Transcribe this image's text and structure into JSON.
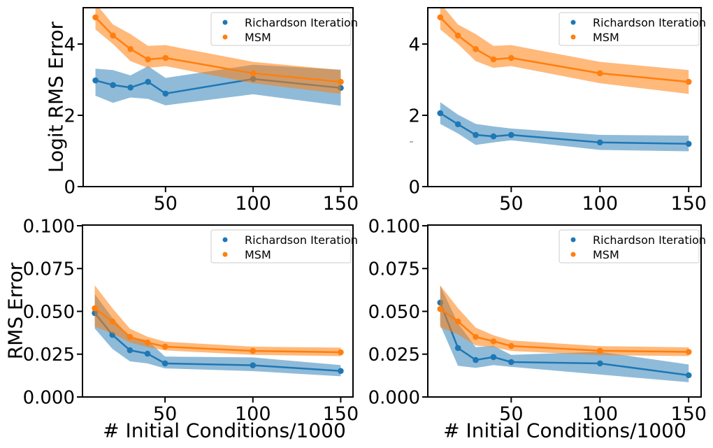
{
  "figure": {
    "background": "#ffffff"
  },
  "colors": {
    "richardson": "#1f77b4",
    "msm": "#ff7f0e",
    "band_opacity": {
      "richardson": 0.5,
      "msm": 0.55
    },
    "spine": "#000000",
    "legend_border": "#cccccc"
  },
  "legend": {
    "labels": [
      "Richardson Iteration",
      "MSM"
    ],
    "position": "upper right"
  },
  "chart_data": [
    {
      "id": "top-left",
      "type": "line",
      "title": "",
      "xlabel": "",
      "ylabel": "Logit RMS Error",
      "x": [
        10,
        20,
        30,
        40,
        50,
        100,
        150
      ],
      "xlim": [
        3,
        157
      ],
      "ylim": [
        0,
        5.02
      ],
      "xticks": [
        50,
        100,
        150
      ],
      "xtick_labels": [
        "50",
        "100",
        "150"
      ],
      "yticks": [
        0,
        2,
        4
      ],
      "ytick_labels": [
        "0",
        "2",
        "4"
      ],
      "grid": false,
      "legend_position": "upper right",
      "series": [
        {
          "name": "Richardson Iteration",
          "color_key": "richardson",
          "values": [
            2.98,
            2.85,
            2.78,
            2.94,
            2.61,
            3.02,
            2.77
          ],
          "band_lo": [
            2.55,
            2.35,
            2.5,
            2.46,
            2.28,
            2.59,
            2.27
          ],
          "band_hi": [
            3.31,
            3.27,
            3.12,
            3.38,
            3.05,
            3.42,
            3.28
          ]
        },
        {
          "name": "MSM",
          "color_key": "msm",
          "values": [
            4.75,
            4.24,
            3.86,
            3.57,
            3.61,
            3.18,
            2.94
          ],
          "band_lo": [
            4.41,
            4.0,
            3.52,
            3.33,
            3.38,
            2.9,
            2.6
          ],
          "band_hi": [
            5.15,
            4.55,
            4.28,
            3.95,
            3.97,
            3.5,
            3.27
          ]
        }
      ]
    },
    {
      "id": "top-right",
      "type": "line",
      "title": "",
      "xlabel": "",
      "ylabel": "",
      "x": [
        10,
        20,
        30,
        40,
        50,
        100,
        150
      ],
      "xlim": [
        3,
        157
      ],
      "ylim": [
        0,
        5.02
      ],
      "xticks": [
        50,
        100,
        150
      ],
      "xtick_labels": [
        "50",
        "100",
        "150"
      ],
      "yticks": [
        0,
        2,
        4
      ],
      "ytick_labels": [
        "0",
        "2",
        "4"
      ],
      "grid": false,
      "legend_position": "upper right",
      "series": [
        {
          "name": "Richardson Iteration",
          "color_key": "richardson",
          "values": [
            2.06,
            1.75,
            1.45,
            1.41,
            1.45,
            1.24,
            1.2
          ],
          "band_lo": [
            1.76,
            1.49,
            1.17,
            1.24,
            1.3,
            1.03,
            0.99
          ],
          "band_hi": [
            2.37,
            2.02,
            1.76,
            1.69,
            1.63,
            1.45,
            1.43
          ]
        },
        {
          "name": "MSM",
          "color_key": "msm",
          "values": [
            4.75,
            4.24,
            3.86,
            3.57,
            3.61,
            3.18,
            2.94
          ],
          "band_lo": [
            4.41,
            4.0,
            3.52,
            3.33,
            3.38,
            2.9,
            2.6
          ],
          "band_hi": [
            5.15,
            4.55,
            4.28,
            3.95,
            3.97,
            3.5,
            3.27
          ]
        }
      ]
    },
    {
      "id": "bottom-left",
      "type": "line",
      "title": "",
      "xlabel": "# Initial Conditions/1000",
      "ylabel": "RMS Error",
      "x": [
        10,
        20,
        30,
        40,
        50,
        100,
        150
      ],
      "xlim": [
        3,
        157
      ],
      "ylim": [
        0,
        0.1004
      ],
      "xticks": [
        50,
        100,
        150
      ],
      "xtick_labels": [
        "50",
        "100",
        "150"
      ],
      "yticks": [
        0,
        0.025,
        0.05,
        0.075,
        0.1
      ],
      "ytick_labels": [
        "0.000",
        "0.025",
        "0.050",
        "0.075",
        "0.100"
      ],
      "grid": false,
      "legend_position": "upper right",
      "series": [
        {
          "name": "Richardson Iteration",
          "color_key": "richardson",
          "values": [
            0.049,
            0.0363,
            0.0273,
            0.0253,
            0.0196,
            0.0185,
            0.0152
          ],
          "band_lo": [
            0.04,
            0.0281,
            0.0208,
            0.0196,
            0.0167,
            0.0151,
            0.0121
          ],
          "band_hi": [
            0.0601,
            0.0462,
            0.0352,
            0.0331,
            0.0236,
            0.0231,
            0.0186
          ]
        },
        {
          "name": "MSM",
          "color_key": "msm",
          "values": [
            0.0518,
            0.0441,
            0.0351,
            0.0318,
            0.0294,
            0.0269,
            0.0261
          ],
          "band_lo": [
            0.041,
            0.0372,
            0.0318,
            0.0292,
            0.0272,
            0.0246,
            0.0238
          ],
          "band_hi": [
            0.0652,
            0.0519,
            0.0399,
            0.0352,
            0.0323,
            0.0294,
            0.0288
          ]
        }
      ]
    },
    {
      "id": "bottom-right",
      "type": "line",
      "title": "",
      "xlabel": "# Initial Conditions/1000",
      "ylabel": "",
      "x": [
        10,
        20,
        30,
        40,
        50,
        100,
        150
      ],
      "xlim": [
        3,
        157
      ],
      "ylim": [
        0,
        0.1004
      ],
      "xticks": [
        50,
        100,
        150
      ],
      "xtick_labels": [
        "50",
        "100",
        "150"
      ],
      "yticks": [
        0,
        0.025,
        0.05,
        0.075,
        0.1
      ],
      "ytick_labels": [
        "0.000",
        "0.025",
        "0.050",
        "0.075",
        "0.100"
      ],
      "grid": false,
      "legend_position": "upper right",
      "series": [
        {
          "name": "Richardson Iteration",
          "color_key": "richardson",
          "values": [
            0.0551,
            0.0286,
            0.0216,
            0.0233,
            0.0204,
            0.0196,
            0.0127
          ],
          "band_lo": [
            0.0421,
            0.0182,
            0.017,
            0.0186,
            0.0176,
            0.0131,
            0.0086
          ],
          "band_hi": [
            0.0649,
            0.0431,
            0.0291,
            0.0299,
            0.0246,
            0.0264,
            0.019
          ]
        },
        {
          "name": "MSM",
          "color_key": "msm",
          "values": [
            0.0514,
            0.0441,
            0.0351,
            0.0325,
            0.0298,
            0.027,
            0.0263
          ],
          "band_lo": [
            0.0406,
            0.0366,
            0.0301,
            0.0291,
            0.0269,
            0.0244,
            0.0239
          ],
          "band_hi": [
            0.0652,
            0.0519,
            0.0405,
            0.036,
            0.033,
            0.0297,
            0.029
          ]
        }
      ]
    }
  ]
}
